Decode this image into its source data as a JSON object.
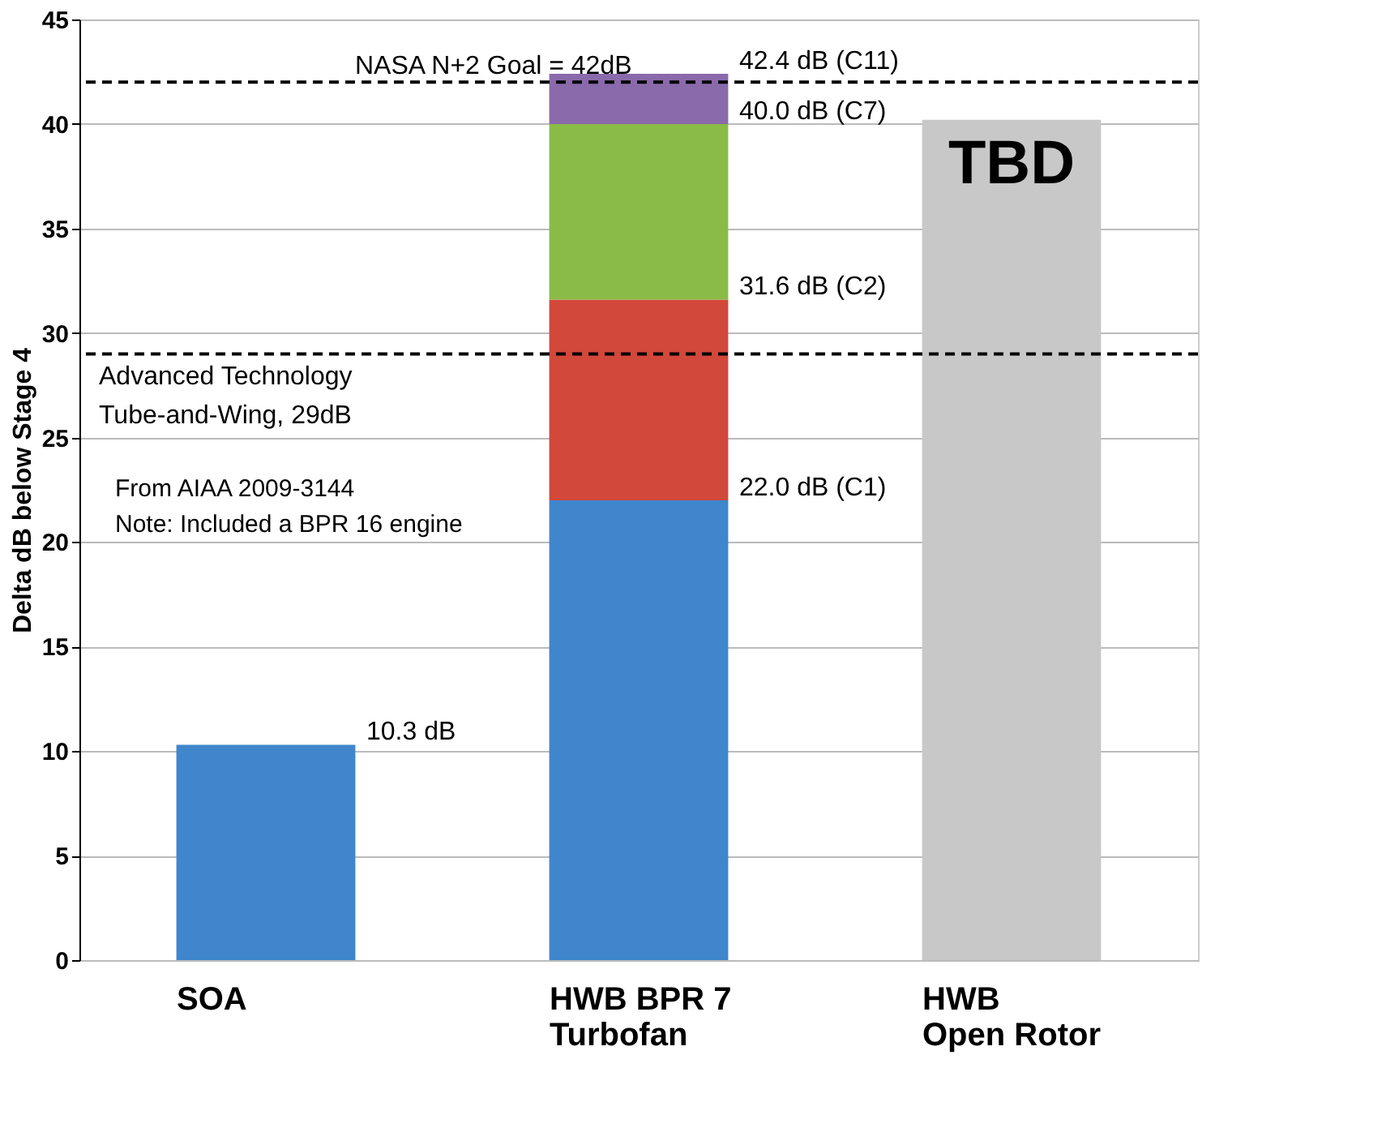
{
  "chart_data": {
    "type": "bar",
    "stacked": true,
    "ylabel": "Delta dB below Stage 4",
    "categories": [
      "SOA",
      "HWB BPR 7\nTurbofan",
      "HWB\nOpen Rotor"
    ],
    "series": [
      {
        "color": "#3f86cc",
        "values": [
          10.3,
          22.0,
          null
        ]
      },
      {
        "color": "#d2483a",
        "values": [
          null,
          9.6,
          null
        ]
      },
      {
        "color": "#8bbb47",
        "values": [
          null,
          8.4,
          null
        ]
      },
      {
        "color": "#8a6aaa",
        "values": [
          null,
          2.4,
          null
        ]
      },
      {
        "color": "#c8c8c8",
        "values": [
          null,
          null,
          40.2
        ]
      }
    ],
    "ylim": [
      0,
      45
    ],
    "yticks": [
      0,
      5,
      10,
      15,
      20,
      25,
      30,
      35,
      40,
      45
    ],
    "grid": "y",
    "ref_lines": [
      {
        "axis": "y",
        "value": 42,
        "label": "NASA N+2 Goal = 42dB",
        "line_style": "dashed"
      },
      {
        "axis": "y",
        "value": 29,
        "label": "Advanced Technology\nTube-and-Wing, 29dB",
        "line_style": "dashed"
      }
    ],
    "annotations": [
      "TBD",
      "From AIAA 2009-3144\nNote: Included a BPR 16 engine",
      "10.3 dB",
      "22.0 dB (C1)",
      "31.6 dB (C2)",
      "40.0 dB (C7)",
      "42.4 dB (C11)"
    ]
  }
}
